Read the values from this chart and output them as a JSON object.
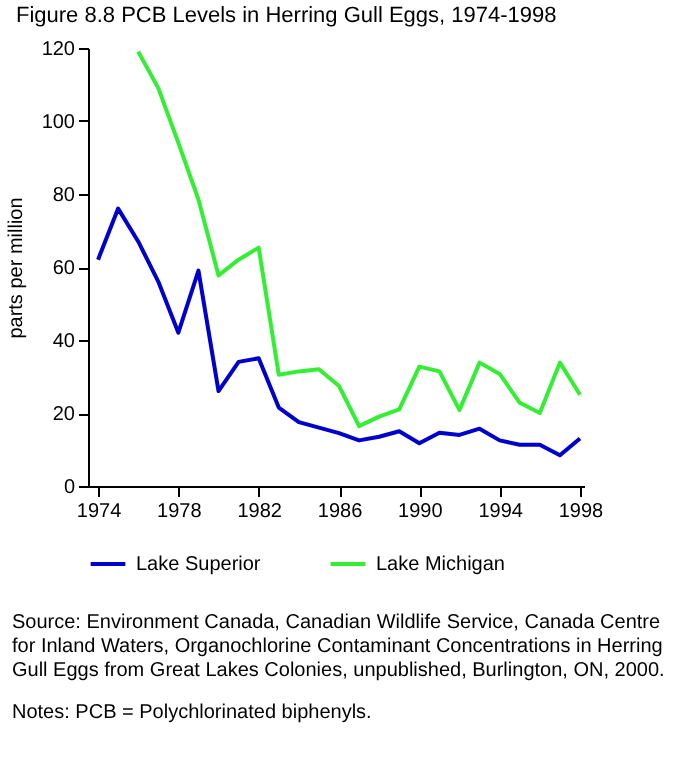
{
  "chart_data": {
    "type": "line",
    "title": "Figure 8.8  PCB Levels in Herring Gull Eggs, 1974-1998",
    "ylabel": "parts per million",
    "x": [
      1974,
      1975,
      1976,
      1977,
      1978,
      1979,
      1980,
      1981,
      1982,
      1983,
      1984,
      1985,
      1986,
      1987,
      1988,
      1989,
      1990,
      1991,
      1992,
      1993,
      1994,
      1995,
      1996,
      1997,
      1998
    ],
    "series": [
      {
        "name": "Lake Superior",
        "color": "#0000cc",
        "values": [
          62,
          76,
          67,
          56,
          42,
          59,
          26,
          34,
          35,
          21.5,
          17.5,
          16,
          14.5,
          12.5,
          13.5,
          15,
          11.7,
          14.6,
          14,
          15.7,
          12.5,
          11.3,
          11.3,
          8.4,
          13
        ]
      },
      {
        "name": "Lake Michigan",
        "color": "#33ee33",
        "values": [
          null,
          null,
          119,
          109,
          94,
          78.5,
          57.7,
          62,
          65.3,
          30.5,
          31.4,
          32,
          27.4,
          16.4,
          19,
          21,
          32.7,
          31.4,
          20.8,
          33.8,
          30.7,
          22.8,
          20,
          33.8,
          25
        ]
      }
    ],
    "xlim": [
      1973.5,
      1998.2
    ],
    "xticks": [
      1974,
      1978,
      1982,
      1986,
      1990,
      1994,
      1998
    ],
    "ylim": [
      0,
      120
    ],
    "yticks": [
      0,
      20,
      40,
      60,
      80,
      100,
      120
    ],
    "grid": false,
    "legend": "bottom",
    "line_style": "solid",
    "marker": "none",
    "annotations": [
      "Source:  Environment Canada, Canadian Wildlife Service, Canada Centre for Inland Waters,  Organochlorine Contaminant Concentrations in Herring Gull Eggs from Great Lakes Colonies, unpublished, Burlington, ON, 2000.",
      "Notes: PCB = Polychlorinated biphenyls."
    ]
  }
}
